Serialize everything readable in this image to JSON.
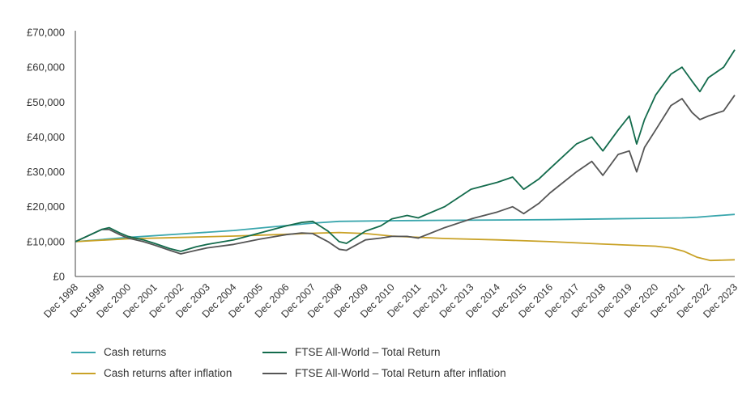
{
  "chart_data": {
    "type": "line",
    "title": "",
    "xlabel": "",
    "ylabel": "",
    "ylim": [
      0,
      70000
    ],
    "yticks": [
      "£0",
      "£10,000",
      "£20,000",
      "£30,000",
      "£40,000",
      "£50,000",
      "£60,000",
      "£70,000"
    ],
    "ytick_values": [
      0,
      10000,
      20000,
      30000,
      40000,
      50000,
      60000,
      70000
    ],
    "xticks": [
      "Dec 1998",
      "Dec 1999",
      "Dec 2000",
      "Dec 2001",
      "Dec 2002",
      "Dec 2003",
      "Dec 2004",
      "Dec 2005",
      "Dec 2006",
      "Dec 2007",
      "Dec 2008",
      "Dec 2009",
      "Dec 2010",
      "Dec 2011",
      "Dec 2012",
      "Dec 2013",
      "Dec 2014",
      "Dec 2015",
      "Dec 2016",
      "Dec 2017",
      "Dec 2018",
      "Dec 2019",
      "Dec 2020",
      "Dec 2021",
      "Dec 2022",
      "Dec 2023"
    ],
    "xlim": [
      1998.92,
      2023.92
    ],
    "grid": false,
    "legend_position": "bottom",
    "series": [
      {
        "name": "Cash returns",
        "color": "#3aa6ad",
        "x": [
          1998.92,
          2000.92,
          2002.92,
          2004.92,
          2006.92,
          2007.92,
          2008.92,
          2010.92,
          2012.92,
          2014.92,
          2016.92,
          2018.92,
          2020.92,
          2021.92,
          2022.5,
          2023.0,
          2023.92
        ],
        "values": [
          10000,
          11200,
          12200,
          13200,
          14600,
          15300,
          15800,
          16000,
          16100,
          16200,
          16300,
          16500,
          16700,
          16800,
          17000,
          17300,
          17800
        ]
      },
      {
        "name": "Cash returns after inflation",
        "color": "#c9a227",
        "x": [
          1998.92,
          2000.92,
          2002.92,
          2004.92,
          2006.92,
          2007.92,
          2008.92,
          2009.92,
          2010.92,
          2012.92,
          2014.92,
          2016.92,
          2018.92,
          2020.92,
          2021.5,
          2022.0,
          2022.5,
          2023.0,
          2023.92
        ],
        "values": [
          10000,
          10800,
          11200,
          11600,
          12100,
          12400,
          12600,
          12300,
          11600,
          10900,
          10500,
          10000,
          9300,
          8700,
          8200,
          7200,
          5500,
          4600,
          4800
        ]
      },
      {
        "name": "FTSE All-World – Total Return",
        "color": "#136b4c",
        "x": [
          1998.92,
          1999.5,
          1999.92,
          2000.2,
          2000.6,
          2000.92,
          2001.5,
          2001.92,
          2002.5,
          2002.92,
          2003.5,
          2003.92,
          2004.92,
          2005.92,
          2006.92,
          2007.5,
          2007.92,
          2008.5,
          2008.92,
          2009.2,
          2009.92,
          2010.5,
          2010.92,
          2011.5,
          2011.92,
          2012.92,
          2013.92,
          2014.92,
          2015.5,
          2015.92,
          2016.5,
          2016.92,
          2017.92,
          2018.5,
          2018.92,
          2019.5,
          2019.92,
          2020.2,
          2020.5,
          2020.92,
          2021.5,
          2021.92,
          2022.3,
          2022.6,
          2022.92,
          2023.5,
          2023.92
        ],
        "values": [
          10000,
          12000,
          13500,
          14000,
          12500,
          11500,
          10500,
          9500,
          8000,
          7200,
          8500,
          9200,
          10500,
          12500,
          14500,
          15500,
          15800,
          13000,
          10000,
          9500,
          13000,
          14500,
          16500,
          17500,
          16800,
          20000,
          25000,
          27000,
          28500,
          25000,
          28000,
          31000,
          38000,
          40000,
          36000,
          42000,
          46000,
          38000,
          45000,
          52000,
          58000,
          60000,
          56000,
          53000,
          57000,
          60000,
          65000
        ]
      },
      {
        "name": "FTSE All-World – Total Return after inflation",
        "color": "#555555",
        "x": [
          1998.92,
          1999.5,
          1999.92,
          2000.2,
          2000.6,
          2000.92,
          2001.5,
          2001.92,
          2002.5,
          2002.92,
          2003.5,
          2003.92,
          2004.92,
          2005.92,
          2006.92,
          2007.5,
          2007.92,
          2008.5,
          2008.92,
          2009.2,
          2009.92,
          2010.5,
          2010.92,
          2011.5,
          2011.92,
          2012.92,
          2013.92,
          2014.92,
          2015.5,
          2015.92,
          2016.5,
          2016.92,
          2017.92,
          2018.5,
          2018.92,
          2019.5,
          2019.92,
          2020.2,
          2020.5,
          2020.92,
          2021.5,
          2021.92,
          2022.3,
          2022.6,
          2022.92,
          2023.5,
          2023.92
        ],
        "values": [
          10000,
          12000,
          13500,
          13500,
          12000,
          11000,
          10000,
          9000,
          7500,
          6500,
          7500,
          8200,
          9200,
          10700,
          12000,
          12500,
          12300,
          10000,
          7800,
          7500,
          10500,
          11000,
          11500,
          11500,
          11000,
          14000,
          16500,
          18500,
          20000,
          18000,
          21000,
          24000,
          30000,
          33000,
          29000,
          35000,
          36000,
          30000,
          37000,
          42000,
          49000,
          51000,
          47000,
          45000,
          46000,
          47500,
          52000
        ]
      }
    ]
  }
}
